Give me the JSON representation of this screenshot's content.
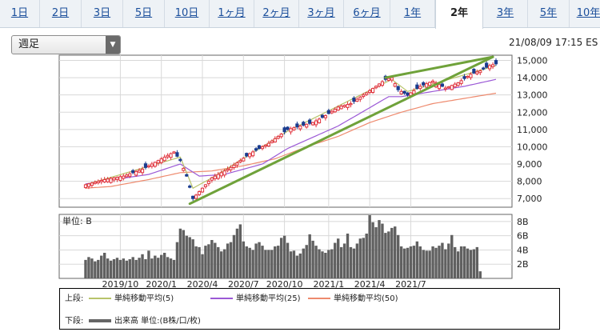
{
  "tabs": [
    {
      "label": "1日",
      "active": false
    },
    {
      "label": "2日",
      "active": false
    },
    {
      "label": "3日",
      "active": false
    },
    {
      "label": "5日",
      "active": false
    },
    {
      "label": "10日",
      "active": false
    },
    {
      "label": "1ヶ月",
      "active": false
    },
    {
      "label": "2ヶ月",
      "active": false
    },
    {
      "label": "3ヶ月",
      "active": false
    },
    {
      "label": "6ヶ月",
      "active": false
    },
    {
      "label": "1年",
      "active": false
    },
    {
      "label": "2年",
      "active": true
    },
    {
      "label": "3年",
      "active": false
    },
    {
      "label": "5年",
      "active": false
    },
    {
      "label": "10年",
      "active": false
    }
  ],
  "period_select": {
    "value": "週足"
  },
  "timestamp": "21/08/09 17:15 ES",
  "colors": {
    "up": "#e0323c",
    "down": "#1a3c8f",
    "ma5": "#b8c46a",
    "ma25": "#9b59d6",
    "ma50": "#ee8a6e",
    "trend": "#6fa23a",
    "volume": "#606060"
  },
  "chart_data": {
    "type": "candlestick",
    "price_axis": {
      "ticks": [
        "15,000",
        "14,000",
        "13,000",
        "12,000",
        "11,000",
        "10,000",
        "9,000",
        "8,000",
        "7,000"
      ],
      "ylim": [
        6500,
        15300
      ]
    },
    "volume_axis": {
      "label": "単位: B",
      "ticks": [
        "8B",
        "6B",
        "4B",
        "2B"
      ],
      "ylim": [
        0,
        9
      ]
    },
    "x_labels": [
      "2019/10",
      "2020/1",
      "2020/4",
      "2020/7",
      "2020/10",
      "2021/1",
      "2021/4",
      "2021/7"
    ],
    "price_keypoints": [
      [
        0,
        7800
      ],
      [
        6,
        8100
      ],
      [
        12,
        8300
      ],
      [
        18,
        8700
      ],
      [
        22,
        9100
      ],
      [
        26,
        9500
      ],
      [
        28,
        9700
      ],
      [
        30,
        9200
      ],
      [
        32,
        8300
      ],
      [
        34,
        7000
      ],
      [
        37,
        7600
      ],
      [
        40,
        8200
      ],
      [
        46,
        8800
      ],
      [
        52,
        9600
      ],
      [
        58,
        10200
      ],
      [
        64,
        11000
      ],
      [
        68,
        11200
      ],
      [
        72,
        11400
      ],
      [
        76,
        11800
      ],
      [
        80,
        12300
      ],
      [
        84,
        12500
      ],
      [
        88,
        13000
      ],
      [
        92,
        13500
      ],
      [
        95,
        13900
      ],
      [
        97,
        14000
      ],
      [
        99,
        13300
      ],
      [
        102,
        13000
      ],
      [
        106,
        13500
      ],
      [
        110,
        13800
      ],
      [
        114,
        13400
      ],
      [
        118,
        13700
      ],
      [
        122,
        14200
      ],
      [
        125,
        14400
      ],
      [
        128,
        14700
      ],
      [
        130,
        14800
      ]
    ],
    "ma5_keypoints": [
      [
        0,
        7800
      ],
      [
        30,
        9400
      ],
      [
        34,
        7600
      ],
      [
        40,
        8200
      ],
      [
        64,
        10900
      ],
      [
        97,
        13900
      ],
      [
        102,
        13200
      ],
      [
        130,
        14700
      ]
    ],
    "ma25_keypoints": [
      [
        0,
        7850
      ],
      [
        20,
        8400
      ],
      [
        30,
        9000
      ],
      [
        36,
        8300
      ],
      [
        44,
        8400
      ],
      [
        56,
        9000
      ],
      [
        64,
        9900
      ],
      [
        80,
        11200
      ],
      [
        96,
        12900
      ],
      [
        100,
        12900
      ],
      [
        110,
        13200
      ],
      [
        120,
        13500
      ],
      [
        130,
        13900
      ]
    ],
    "ma50_keypoints": [
      [
        0,
        7600
      ],
      [
        8,
        7700
      ],
      [
        20,
        8100
      ],
      [
        30,
        8500
      ],
      [
        40,
        8600
      ],
      [
        50,
        8900
      ],
      [
        60,
        9300
      ],
      [
        70,
        10000
      ],
      [
        80,
        10600
      ],
      [
        90,
        11400
      ],
      [
        100,
        12000
      ],
      [
        110,
        12500
      ],
      [
        120,
        12800
      ],
      [
        130,
        13100
      ]
    ],
    "trendlines": [
      {
        "x": [
          33,
          129
        ],
        "y": [
          6700,
          15200
        ]
      },
      {
        "x": [
          95,
          129
        ],
        "y": [
          14000,
          15200
        ]
      }
    ],
    "volume": [
      2.6,
      3.0,
      2.8,
      2.4,
      2.6,
      3.2,
      3.6,
      2.8,
      2.5,
      2.7,
      2.9,
      2.6,
      2.8,
      2.5,
      2.7,
      3.0,
      2.6,
      2.9,
      3.4,
      2.7,
      3.9,
      2.8,
      3.2,
      2.9,
      3.3,
      3.6,
      3.0,
      2.8,
      2.6,
      5.1,
      7.0,
      6.8,
      6.0,
      5.8,
      5.5,
      4.5,
      4.4,
      3.4,
      4.6,
      4.8,
      5.4,
      5.0,
      4.4,
      3.8,
      4.1,
      4.9,
      5.1,
      6.1,
      7.0,
      7.6,
      5.2,
      4.5,
      4.3,
      4.0,
      4.9,
      5.1,
      4.6,
      4.0,
      4.0,
      4.0,
      4.5,
      4.6,
      5.7,
      6.0,
      5.0,
      3.8,
      3.9,
      3.2,
      3.5,
      4.2,
      4.7,
      6.2,
      5.3,
      4.6,
      4.1,
      3.8,
      3.6,
      4.0,
      4.1,
      5.0,
      5.6,
      4.4,
      4.9,
      6.3,
      4.4,
      4.2,
      4.9,
      5.6,
      5.7,
      6.3,
      8.9,
      7.9,
      7.2,
      8.2,
      7.7,
      6.4,
      6.6,
      7.1,
      7.3,
      6.1,
      4.5,
      4.2,
      4.3,
      4.5,
      4.6,
      5.2,
      4.5,
      4.0,
      3.9,
      3.9,
      4.5,
      4.3,
      4.6,
      5.0,
      4.1,
      4.9,
      6.1,
      4.4,
      3.8,
      4.5,
      4.5,
      4.2,
      4.0,
      4.1,
      4.4,
      1.0
    ]
  },
  "legend": {
    "upper_label": "上段:",
    "lower_label": "下段:",
    "items": [
      "単純移動平均(5)",
      "単純移動平均(25)",
      "単純移動平均(50)"
    ],
    "volume_label": "出来高 単位:(B株/口/枚)"
  }
}
